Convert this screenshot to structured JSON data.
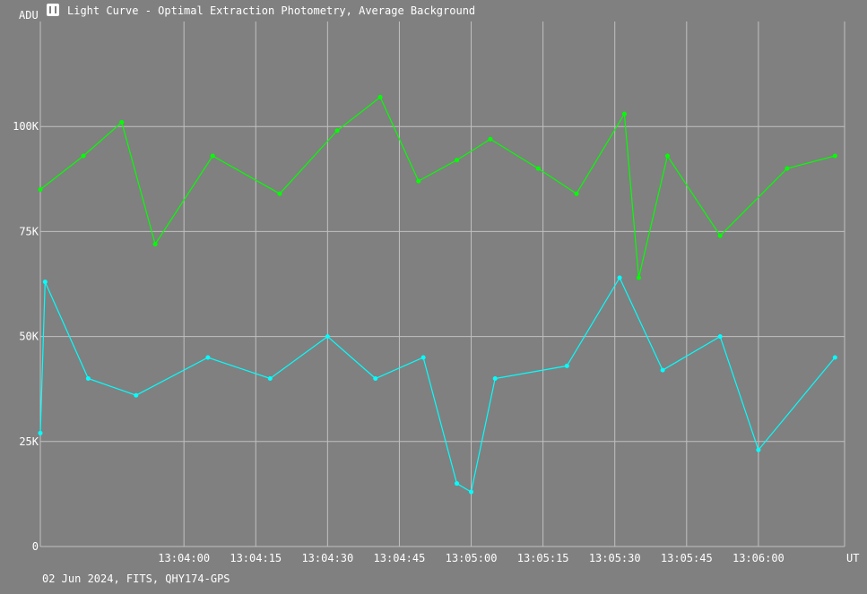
{
  "window": {
    "title": "Light Curve - Optimal Extraction Photometry, Average Background",
    "icon": "light-curve-app-icon"
  },
  "footer": {
    "caption": "02 Jun 2024, FITS, QHY174-GPS"
  },
  "colors": {
    "background": "#808080",
    "grid": "#c0c0c0",
    "text": "#ffffff",
    "series1": "#00ff00",
    "series2": "#00ffff"
  },
  "chart_data": {
    "type": "line",
    "title": "",
    "ylabel": "ADU",
    "xlabel": "UT",
    "grid": true,
    "legend": "none",
    "ylim": [
      0,
      125000
    ],
    "xlim": [
      "13:03:30",
      "13:06:18"
    ],
    "y_ticks": [
      {
        "value": 0,
        "label": "0"
      },
      {
        "value": 25000,
        "label": "25K"
      },
      {
        "value": 50000,
        "label": "50K"
      },
      {
        "value": 75000,
        "label": "75K"
      },
      {
        "value": 100000,
        "label": "100K"
      }
    ],
    "x_ticks": [
      "13:04:00",
      "13:04:15",
      "13:04:30",
      "13:04:45",
      "13:05:00",
      "13:05:15",
      "13:05:30",
      "13:05:45",
      "13:06:00"
    ],
    "series": [
      {
        "color": "#00ff00",
        "x": [
          "13:03:30",
          "13:03:39",
          "13:03:47",
          "13:03:54",
          "13:04:06",
          "13:04:20",
          "13:04:32",
          "13:04:41",
          "13:04:49",
          "13:04:57",
          "13:05:04",
          "13:05:14",
          "13:05:22",
          "13:05:32",
          "13:05:35",
          "13:05:41",
          "13:05:52",
          "13:06:06",
          "13:06:16"
        ],
        "values": [
          85000,
          93000,
          101000,
          72000,
          93000,
          84000,
          99000,
          107000,
          87000,
          92000,
          97000,
          90000,
          84000,
          103000,
          64000,
          93000,
          74000,
          90000,
          93000
        ]
      },
      {
        "color": "#00ffff",
        "x": [
          "13:03:30",
          "13:03:31",
          "13:03:40",
          "13:03:50",
          "13:04:05",
          "13:04:18",
          "13:04:30",
          "13:04:40",
          "13:04:50",
          "13:04:57",
          "13:05:00",
          "13:05:05",
          "13:05:20",
          "13:05:31",
          "13:05:40",
          "13:05:52",
          "13:06:00",
          "13:06:16"
        ],
        "values": [
          27000,
          63000,
          40000,
          36000,
          45000,
          40000,
          50000,
          40000,
          45000,
          15000,
          13000,
          40000,
          43000,
          64000,
          42000,
          50000,
          23000,
          45000
        ]
      }
    ]
  }
}
